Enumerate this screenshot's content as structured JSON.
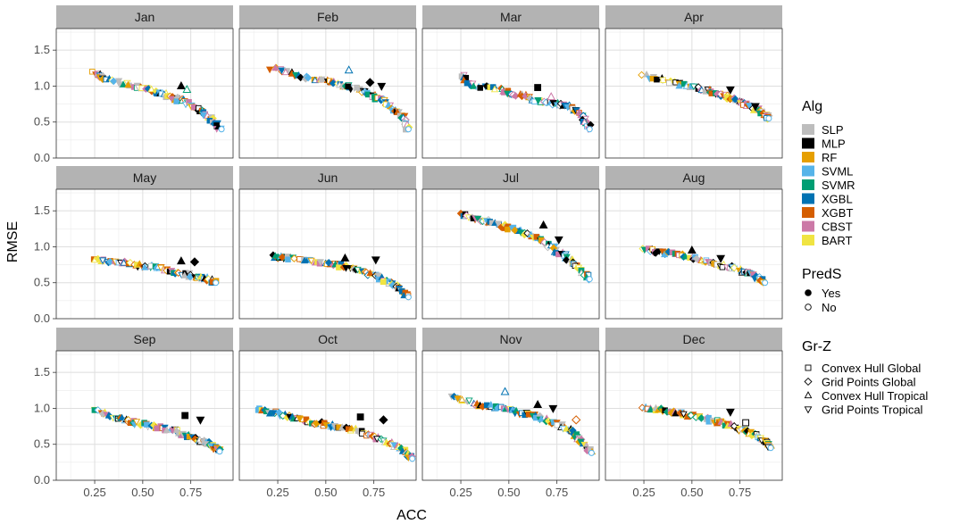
{
  "chart_data": {
    "type": "scatter",
    "xlabel": "ACC",
    "ylabel": "RMSE",
    "xticks": [
      "0.25",
      "0.50",
      "0.75"
    ],
    "yticks": [
      "0.0",
      "0.5",
      "1.0",
      "1.5"
    ],
    "xlim": [
      0.05,
      0.97
    ],
    "ylim": [
      0.0,
      1.8
    ],
    "facets": [
      {
        "label": "Jan",
        "c": [
          [
            0.25,
            1.18
          ],
          [
            0.3,
            1.1
          ],
          [
            0.45,
            1.0
          ],
          [
            0.55,
            0.93
          ],
          [
            0.65,
            0.85
          ],
          [
            0.72,
            0.78
          ],
          [
            0.8,
            0.65
          ],
          [
            0.86,
            0.52
          ],
          [
            0.91,
            0.4
          ]
        ],
        "extra": [
          [
            0.7,
            1.0,
            "MLP",
            "Yes",
            "tri"
          ],
          [
            0.73,
            0.95,
            "SVMR",
            "No",
            "tri"
          ]
        ]
      },
      {
        "label": "Feb",
        "c": [
          [
            0.22,
            1.25
          ],
          [
            0.35,
            1.15
          ],
          [
            0.5,
            1.06
          ],
          [
            0.6,
            1.0
          ],
          [
            0.7,
            0.92
          ],
          [
            0.78,
            0.82
          ],
          [
            0.85,
            0.7
          ],
          [
            0.9,
            0.58
          ],
          [
            0.93,
            0.4
          ]
        ],
        "extra": [
          [
            0.62,
            1.22,
            "XGBL",
            "No",
            "tri"
          ],
          [
            0.73,
            1.05,
            "MLP",
            "Yes",
            "dia"
          ],
          [
            0.79,
            1.0,
            "MLP",
            "Yes",
            "dtri"
          ]
        ]
      },
      {
        "label": "Mar",
        "c": [
          [
            0.25,
            1.15
          ],
          [
            0.3,
            1.02
          ],
          [
            0.45,
            0.95
          ],
          [
            0.55,
            0.88
          ],
          [
            0.65,
            0.8
          ],
          [
            0.75,
            0.75
          ],
          [
            0.82,
            0.7
          ],
          [
            0.88,
            0.6
          ],
          [
            0.92,
            0.4
          ]
        ],
        "extra": [
          [
            0.65,
            0.98,
            "MLP",
            "Yes",
            "sq"
          ],
          [
            0.72,
            0.85,
            "CBST",
            "No",
            "tri"
          ]
        ]
      },
      {
        "label": "Apr",
        "c": [
          [
            0.25,
            1.15
          ],
          [
            0.38,
            1.05
          ],
          [
            0.5,
            1.0
          ],
          [
            0.6,
            0.92
          ],
          [
            0.68,
            0.85
          ],
          [
            0.75,
            0.78
          ],
          [
            0.82,
            0.7
          ],
          [
            0.88,
            0.6
          ],
          [
            0.9,
            0.55
          ]
        ],
        "extra": [
          [
            0.7,
            0.95,
            "MLP",
            "Yes",
            "dtri"
          ],
          [
            0.83,
            0.72,
            "MLP",
            "Yes",
            "dtri"
          ]
        ]
      },
      {
        "label": "May",
        "c": [
          [
            0.25,
            0.82
          ],
          [
            0.35,
            0.8
          ],
          [
            0.45,
            0.75
          ],
          [
            0.55,
            0.72
          ],
          [
            0.65,
            0.67
          ],
          [
            0.75,
            0.6
          ],
          [
            0.82,
            0.56
          ],
          [
            0.88,
            0.5
          ]
        ],
        "extra": [
          [
            0.7,
            0.8,
            "MLP",
            "Yes",
            "tri"
          ],
          [
            0.77,
            0.79,
            "MLP",
            "Yes",
            "dia"
          ]
        ]
      },
      {
        "label": "Jun",
        "c": [
          [
            0.22,
            0.86
          ],
          [
            0.3,
            0.85
          ],
          [
            0.45,
            0.8
          ],
          [
            0.55,
            0.75
          ],
          [
            0.65,
            0.68
          ],
          [
            0.75,
            0.6
          ],
          [
            0.82,
            0.52
          ],
          [
            0.88,
            0.45
          ],
          [
            0.93,
            0.3
          ]
        ],
        "extra": [
          [
            0.6,
            0.84,
            "MLP",
            "Yes",
            "tri"
          ],
          [
            0.76,
            0.82,
            "MLP",
            "Yes",
            "dtri"
          ]
        ]
      },
      {
        "label": "Jul",
        "c": [
          [
            0.25,
            1.45
          ],
          [
            0.35,
            1.38
          ],
          [
            0.45,
            1.3
          ],
          [
            0.55,
            1.22
          ],
          [
            0.65,
            1.12
          ],
          [
            0.72,
            1.0
          ],
          [
            0.8,
            0.85
          ],
          [
            0.86,
            0.72
          ],
          [
            0.92,
            0.55
          ]
        ],
        "extra": [
          [
            0.68,
            1.3,
            "MLP",
            "Yes",
            "tri"
          ],
          [
            0.76,
            1.1,
            "MLP",
            "Yes",
            "dtri"
          ]
        ]
      },
      {
        "label": "Aug",
        "c": [
          [
            0.25,
            0.97
          ],
          [
            0.35,
            0.92
          ],
          [
            0.45,
            0.88
          ],
          [
            0.55,
            0.82
          ],
          [
            0.65,
            0.75
          ],
          [
            0.75,
            0.68
          ],
          [
            0.82,
            0.6
          ],
          [
            0.88,
            0.5
          ]
        ],
        "extra": [
          [
            0.5,
            0.95,
            "MLP",
            "Yes",
            "tri"
          ],
          [
            0.65,
            0.84,
            "MLP",
            "Yes",
            "dtri"
          ]
        ]
      },
      {
        "label": "Sep",
        "c": [
          [
            0.25,
            0.97
          ],
          [
            0.35,
            0.87
          ],
          [
            0.45,
            0.81
          ],
          [
            0.55,
            0.75
          ],
          [
            0.65,
            0.7
          ],
          [
            0.72,
            0.63
          ],
          [
            0.8,
            0.55
          ],
          [
            0.86,
            0.48
          ],
          [
            0.9,
            0.4
          ]
        ],
        "extra": [
          [
            0.72,
            0.9,
            "MLP",
            "Yes",
            "sq"
          ],
          [
            0.8,
            0.84,
            "MLP",
            "Yes",
            "dtri"
          ]
        ]
      },
      {
        "label": "Oct",
        "c": [
          [
            0.15,
            1.0
          ],
          [
            0.25,
            0.92
          ],
          [
            0.35,
            0.85
          ],
          [
            0.45,
            0.8
          ],
          [
            0.55,
            0.75
          ],
          [
            0.65,
            0.7
          ],
          [
            0.75,
            0.6
          ],
          [
            0.85,
            0.5
          ],
          [
            0.9,
            0.42
          ],
          [
            0.95,
            0.3
          ]
        ],
        "extra": [
          [
            0.68,
            0.88,
            "MLP",
            "Yes",
            "sq"
          ],
          [
            0.8,
            0.84,
            "MLP",
            "Yes",
            "dia"
          ]
        ]
      },
      {
        "label": "Nov",
        "c": [
          [
            0.2,
            1.17
          ],
          [
            0.35,
            1.05
          ],
          [
            0.45,
            1.0
          ],
          [
            0.55,
            0.95
          ],
          [
            0.65,
            0.88
          ],
          [
            0.75,
            0.78
          ],
          [
            0.82,
            0.7
          ],
          [
            0.87,
            0.55
          ],
          [
            0.93,
            0.38
          ]
        ],
        "extra": [
          [
            0.48,
            1.23,
            "XGBL",
            "No",
            "tri"
          ],
          [
            0.65,
            1.05,
            "MLP",
            "Yes",
            "tri"
          ],
          [
            0.73,
            1.0,
            "MLP",
            "Yes",
            "dtri"
          ],
          [
            0.85,
            0.84,
            "XGBT",
            "No",
            "dia"
          ]
        ]
      },
      {
        "label": "Dec",
        "c": [
          [
            0.25,
            1.01
          ],
          [
            0.35,
            0.97
          ],
          [
            0.45,
            0.92
          ],
          [
            0.55,
            0.87
          ],
          [
            0.65,
            0.8
          ],
          [
            0.75,
            0.72
          ],
          [
            0.82,
            0.64
          ],
          [
            0.88,
            0.55
          ],
          [
            0.91,
            0.45
          ]
        ],
        "extra": [
          [
            0.7,
            0.95,
            "MLP",
            "Yes",
            "dtri"
          ],
          [
            0.78,
            0.8,
            "MLP",
            "No",
            "sq"
          ]
        ]
      }
    ],
    "legends": {
      "alg": {
        "title": "Alg",
        "items": [
          {
            "label": "SLP",
            "color": "#bdbdbd"
          },
          {
            "label": "MLP",
            "color": "#000000"
          },
          {
            "label": "RF",
            "color": "#e69f00"
          },
          {
            "label": "SVML",
            "color": "#56b4e9"
          },
          {
            "label": "SVMR",
            "color": "#009e73"
          },
          {
            "label": "XGBL",
            "color": "#0072b2"
          },
          {
            "label": "XGBT",
            "color": "#d55e00"
          },
          {
            "label": "CBST",
            "color": "#cc79a7"
          },
          {
            "label": "BART",
            "color": "#f0e442"
          }
        ]
      },
      "preds": {
        "title": "PredS",
        "items": [
          {
            "label": "Yes",
            "shape": "filled-circle"
          },
          {
            "label": "No",
            "shape": "open-circle"
          }
        ]
      },
      "grz": {
        "title": "Gr-Z",
        "items": [
          {
            "label": "Convex Hull Global",
            "shape": "square"
          },
          {
            "label": "Grid Points Global",
            "shape": "diamond"
          },
          {
            "label": "Convex Hull Tropical",
            "shape": "triangle"
          },
          {
            "label": "Grid Points Tropical",
            "shape": "down-triangle"
          }
        ]
      }
    }
  }
}
